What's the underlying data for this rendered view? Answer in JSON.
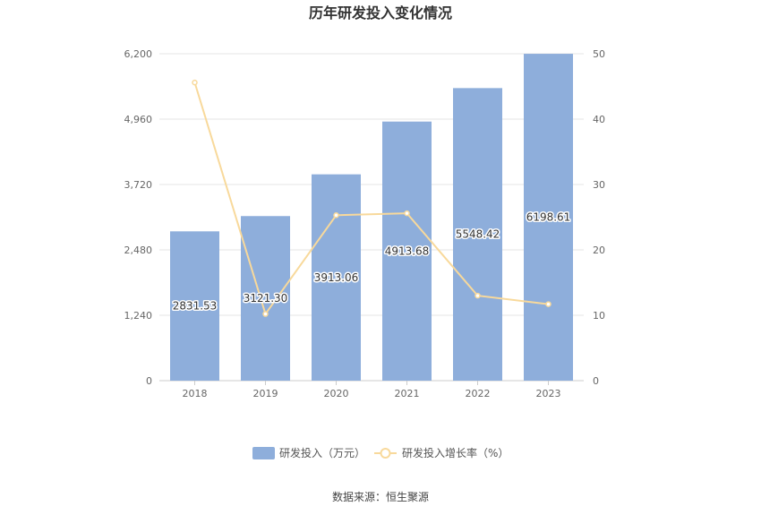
{
  "chart_data": {
    "type": "bar",
    "title": "历年研发投入变化情况",
    "categories": [
      "2018",
      "2019",
      "2020",
      "2021",
      "2022",
      "2023"
    ],
    "series": [
      {
        "name": "研发投入（万元）",
        "type": "bar",
        "axis": "left",
        "color": "#8eaedb",
        "values": [
          2831.53,
          3121.3,
          3913.06,
          4913.68,
          5548.42,
          6198.61
        ],
        "labels": [
          "2831.53",
          "3121.30",
          "3913.06",
          "4913.68",
          "5548.42",
          "6198.61"
        ]
      },
      {
        "name": "研发投入增长率（%）",
        "type": "line",
        "axis": "right",
        "color": "#f8d99b",
        "values": [
          45.6,
          10.2,
          25.3,
          25.6,
          13.0,
          11.7
        ]
      }
    ],
    "y_left": {
      "min": 0,
      "max": 6200,
      "ticks": [
        "0",
        "1,240",
        "2,480",
        "3,720",
        "4,960",
        "6,200"
      ]
    },
    "y_right": {
      "min": 0,
      "max": 50,
      "ticks": [
        "0",
        "10",
        "20",
        "30",
        "40",
        "50"
      ]
    },
    "grid": true,
    "legend_position": "bottom"
  },
  "source": "数据来源：恒生聚源"
}
